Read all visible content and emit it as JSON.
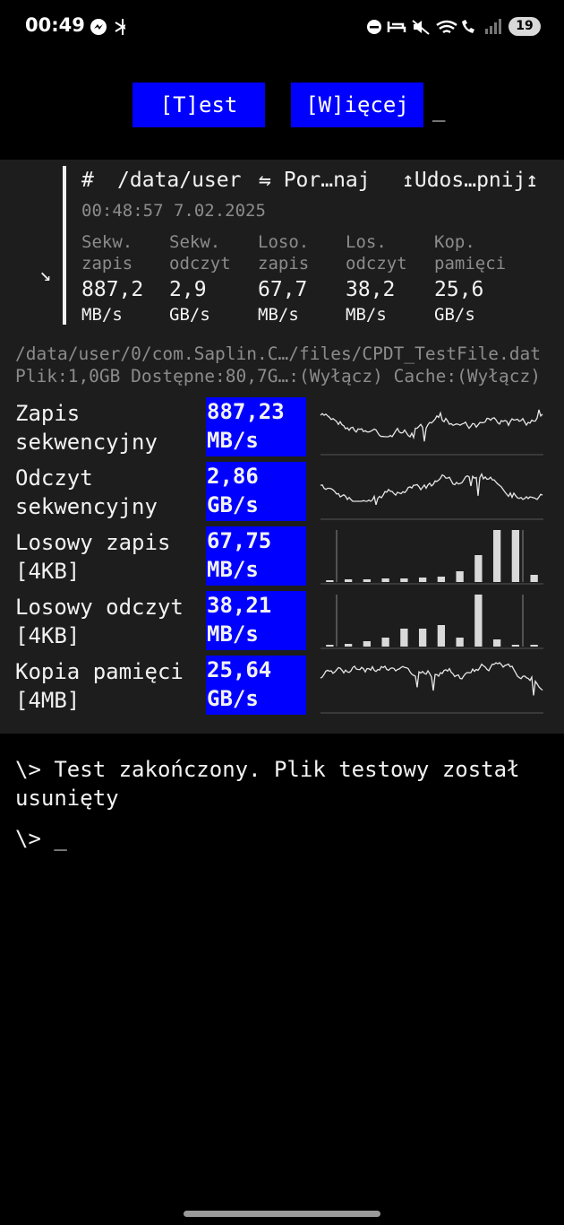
{
  "status_bar": {
    "time": "00:49",
    "battery": "19"
  },
  "toolbar": {
    "buttons": [
      "[T]est",
      "[W]ięcej"
    ],
    "cursor": "_"
  },
  "summary": {
    "hash": "#",
    "path": "/data/user",
    "compare": "⇋ Por…naj",
    "share": "↥Udos…pnij↥",
    "timestamp": "00:48:57 7.02.2025",
    "arrow": "↘",
    "columns": [
      {
        "label": "Sekw. zapis",
        "value": "887,2",
        "unit": "MB/s"
      },
      {
        "label": "Sekw. odczyt",
        "value": "2,9",
        "unit": "GB/s"
      },
      {
        "label": "Loso. zapis",
        "value": "67,7",
        "unit": "MB/s"
      },
      {
        "label": "Los. odczyt",
        "value": "38,2",
        "unit": "MB/s"
      },
      {
        "label": "Kop. pamięci",
        "value": "25,6",
        "unit": "GB/s"
      }
    ]
  },
  "file_info": {
    "path": "/data/user/0/com.Saplin.C…/files/CPDT_TestFile.dat",
    "details": "Plik:1,0GB Dostępne:80,7G…:(Wyłącz) Cache:(Wyłącz)"
  },
  "results": [
    {
      "name": "Zapis sekwencyjny",
      "value": "887,23",
      "unit": "MB/s"
    },
    {
      "name": "Odczyt sekwencyjny",
      "value": "2,86",
      "unit": "GB/s"
    },
    {
      "name": "Losowy zapis [4KB]",
      "value": "67,75",
      "unit": "MB/s"
    },
    {
      "name": "Losowy odczyt [4KB]",
      "value": "38,21",
      "unit": "MB/s"
    },
    {
      "name": "Kopia pamięci [4MB]",
      "value": "25,64",
      "unit": "GB/s"
    }
  ],
  "console": {
    "lines": [
      "\\> Test zakończony. Plik testowy został usunięty",
      "\\> _"
    ]
  }
}
